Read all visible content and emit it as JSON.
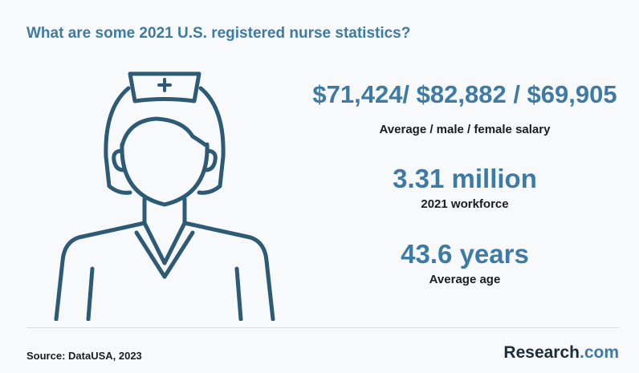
{
  "title": "What are some 2021 U.S. registered nurse statistics?",
  "stats": [
    {
      "value": "$71,424/ $82,882 / $69,905",
      "label": "Average / male / female salary"
    },
    {
      "value": "3.31 million",
      "label": "2021 workforce"
    },
    {
      "value": "43.6 years",
      "label": "Average age"
    }
  ],
  "illustration": {
    "icon": "nurse-icon",
    "color": "#2d5a75"
  },
  "footer": {
    "source": "Source: DataUSA, 2023",
    "brand_main": "Research",
    "brand_ext": ".com"
  },
  "colors": {
    "accent": "#3d7ba5",
    "text": "#1c1c1c",
    "brand_dark": "#1c2c3f",
    "background": "#f7f9fb"
  }
}
